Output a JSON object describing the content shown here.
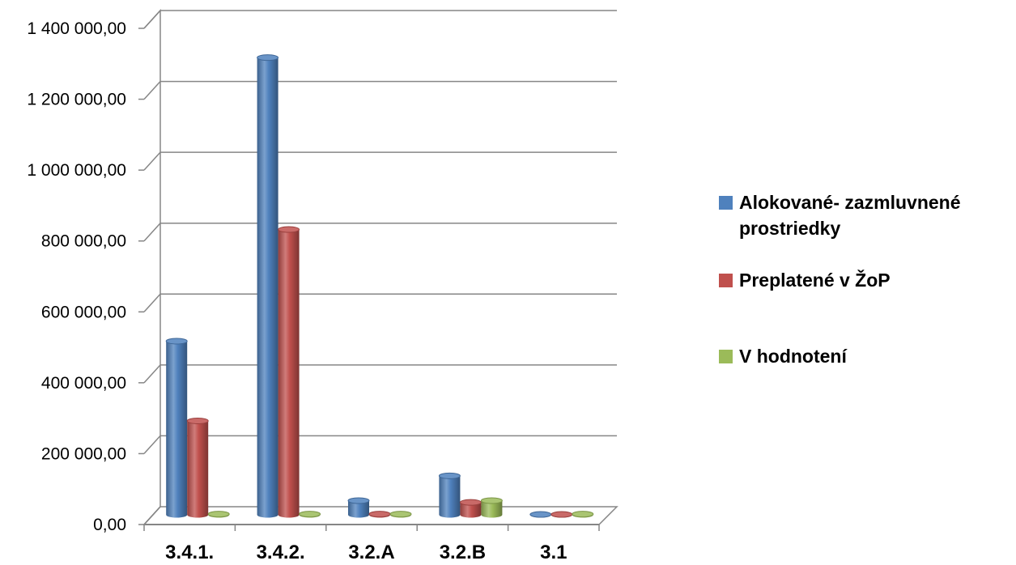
{
  "chart_data": {
    "type": "bar",
    "style": "3d-cylinder",
    "categories": [
      "3.4.1.",
      "3.4.2.",
      "3.2.A",
      "3.2.B",
      "3.1"
    ],
    "series": [
      {
        "name": "Alokované- zazmluvnené prostriedky",
        "color": "#4f81bd",
        "values": [
          490000,
          1290000,
          40000,
          110000,
          1000
        ]
      },
      {
        "name": "Preplatené v ŽoP",
        "color": "#c0504d",
        "values": [
          265000,
          805000,
          2000,
          35000,
          1000
        ]
      },
      {
        "name": "V hodnotení",
        "color": "#9bbb59",
        "values": [
          2000,
          2000,
          2000,
          40000,
          2000
        ]
      }
    ],
    "y_ticks": [
      "0,00",
      "200 000,00",
      "400 000,00",
      "600 000,00",
      "800 000,00",
      "1 000 000,00",
      "1 200 000,00",
      "1 400 000,00"
    ],
    "ylim": [
      0,
      1400000
    ],
    "grid": true,
    "legend_position": "right"
  }
}
